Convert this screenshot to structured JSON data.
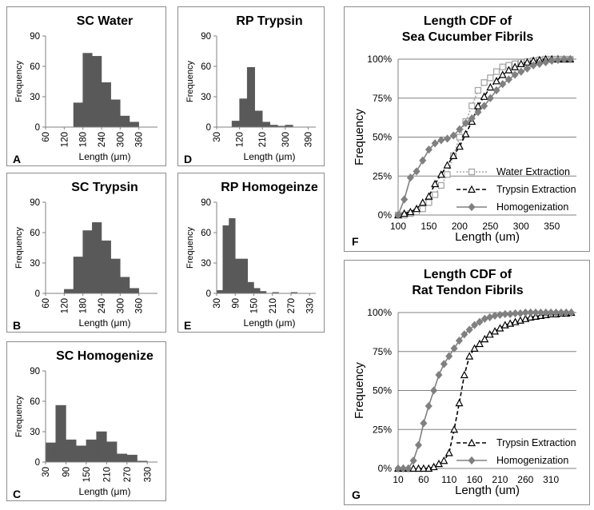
{
  "chart_data": [
    {
      "id": "A",
      "type": "bar",
      "panel_label": "A",
      "title": "SC Water",
      "xlabel": "Length (μm)",
      "ylabel": "Frequency",
      "ylim": [
        0,
        90
      ],
      "yticks": [
        0,
        30,
        60,
        90
      ],
      "xtick_labels": [
        "60",
        "120",
        "180",
        "240",
        "300",
        "360"
      ],
      "bin_width": 30,
      "bins": [
        60,
        90,
        120,
        150,
        180,
        210,
        240,
        270,
        300,
        330,
        360,
        390
      ],
      "values": [
        0,
        0,
        0,
        24,
        73,
        70,
        44,
        27,
        11,
        5,
        0,
        0
      ]
    },
    {
      "id": "B",
      "type": "bar",
      "panel_label": "B",
      "title": "SC Trypsin",
      "xlabel": "Length (μm)",
      "ylabel": "Frequency",
      "ylim": [
        0,
        90
      ],
      "yticks": [
        0,
        30,
        60,
        90
      ],
      "xtick_labels": [
        "60",
        "120",
        "180",
        "240",
        "300",
        "360"
      ],
      "bin_width": 30,
      "bins": [
        60,
        90,
        120,
        150,
        180,
        210,
        240,
        270,
        300,
        330,
        360,
        390
      ],
      "values": [
        0,
        0,
        4,
        36,
        62,
        70,
        52,
        34,
        16,
        5,
        0,
        0
      ]
    },
    {
      "id": "C",
      "type": "bar",
      "panel_label": "C",
      "title": "SC Homogenize",
      "xlabel": "Length (μm)",
      "ylabel": "Frequency",
      "ylim": [
        0,
        90
      ],
      "yticks": [
        0,
        30,
        60,
        90
      ],
      "xtick_labels": [
        "30",
        "90",
        "150",
        "210",
        "270",
        "330"
      ],
      "bin_width": 30,
      "bins": [
        30,
        60,
        90,
        120,
        150,
        180,
        210,
        240,
        270,
        300,
        330
      ],
      "values": [
        19,
        56,
        22,
        16,
        22,
        30,
        20,
        8,
        7,
        1,
        0
      ]
    },
    {
      "id": "D",
      "type": "bar",
      "panel_label": "D",
      "title": "RP Trypsin",
      "xlabel": "Length (μm)",
      "ylabel": "Frequency",
      "ylim": [
        0,
        90
      ],
      "yticks": [
        0,
        30,
        60,
        90
      ],
      "xtick_labels": [
        "30",
        "120",
        "210",
        "300",
        "390"
      ],
      "bin_width": 30,
      "bins": [
        30,
        60,
        90,
        120,
        150,
        180,
        210,
        240,
        270,
        300,
        330,
        360,
        390
      ],
      "values": [
        0,
        0,
        6,
        28,
        59,
        16,
        5,
        2,
        1,
        2,
        0,
        0,
        0
      ]
    },
    {
      "id": "E",
      "type": "bar",
      "panel_label": "E",
      "title": "RP Homogeinze",
      "xlabel": "Length (μm)",
      "ylabel": "Frequency",
      "ylim": [
        0,
        90
      ],
      "yticks": [
        0,
        30,
        60,
        90
      ],
      "xtick_labels": [
        "30",
        "90",
        "150",
        "210",
        "270",
        "330"
      ],
      "bin_width": 20,
      "bins": [
        30,
        50,
        70,
        90,
        110,
        130,
        150,
        170,
        190,
        210,
        230,
        250,
        270,
        290,
        310,
        330
      ],
      "values": [
        3,
        67,
        74,
        34,
        34,
        11,
        5,
        2,
        0,
        1,
        0,
        0,
        1,
        0,
        0,
        0
      ]
    },
    {
      "id": "F",
      "type": "line",
      "panel_label": "F",
      "title": "Length CDF of",
      "subtitle": "Sea Cucumber Fibrils",
      "xlabel": "Length (um)",
      "ylabel": "Frequency",
      "xlim": [
        100,
        390
      ],
      "ylim": [
        0,
        1
      ],
      "xticks": [
        100,
        150,
        200,
        250,
        300,
        350
      ],
      "yticks": [
        0,
        0.25,
        0.5,
        0.75,
        1
      ],
      "ytick_labels": [
        "0%",
        "25%",
        "50%",
        "75%",
        "100%"
      ],
      "legend_position": "bottom-right",
      "series": [
        {
          "name": "Water Extraction",
          "color": "#a6a6a6",
          "dash": "2,2",
          "marker": "square",
          "x": [
            100,
            110,
            120,
            130,
            140,
            150,
            160,
            170,
            180,
            190,
            200,
            210,
            220,
            230,
            240,
            250,
            260,
            270,
            280,
            290,
            300,
            310,
            320,
            330,
            340,
            350,
            360,
            370,
            380
          ],
          "y": [
            0,
            0,
            0.01,
            0.02,
            0.04,
            0.08,
            0.13,
            0.19,
            0.26,
            0.38,
            0.5,
            0.6,
            0.7,
            0.8,
            0.85,
            0.88,
            0.92,
            0.95,
            0.96,
            0.97,
            0.98,
            0.985,
            0.99,
            0.995,
            1,
            1,
            1,
            1,
            1
          ]
        },
        {
          "name": "Trypsin Extraction",
          "color": "#000000",
          "dash": "5,3",
          "marker": "triangle",
          "x": [
            100,
            110,
            120,
            130,
            140,
            150,
            160,
            170,
            180,
            190,
            200,
            210,
            220,
            230,
            240,
            250,
            260,
            270,
            280,
            290,
            300,
            310,
            320,
            330,
            340,
            350,
            360,
            370,
            380
          ],
          "y": [
            0,
            0.01,
            0.02,
            0.04,
            0.08,
            0.12,
            0.2,
            0.26,
            0.32,
            0.38,
            0.44,
            0.52,
            0.6,
            0.7,
            0.76,
            0.82,
            0.86,
            0.9,
            0.93,
            0.95,
            0.97,
            0.98,
            0.99,
            0.995,
            1,
            1,
            1,
            1,
            1
          ]
        },
        {
          "name": "Homogenization",
          "color": "#808080",
          "dash": "",
          "marker": "diamond",
          "x": [
            100,
            110,
            120,
            130,
            140,
            150,
            160,
            170,
            180,
            190,
            200,
            210,
            220,
            230,
            240,
            250,
            260,
            270,
            280,
            290,
            300,
            310,
            320,
            330,
            340,
            350,
            360,
            370,
            380
          ],
          "y": [
            0,
            0.1,
            0.24,
            0.28,
            0.35,
            0.42,
            0.46,
            0.48,
            0.49,
            0.51,
            0.55,
            0.59,
            0.62,
            0.66,
            0.7,
            0.75,
            0.8,
            0.84,
            0.87,
            0.9,
            0.92,
            0.94,
            0.96,
            0.97,
            0.98,
            0.99,
            0.995,
            1,
            1
          ]
        }
      ]
    },
    {
      "id": "G",
      "type": "line",
      "panel_label": "G",
      "title": "Length CDF of",
      "subtitle": "Rat Tendon Fibrils",
      "xlabel": "Length (um)",
      "ylabel": "Frequency",
      "xlim": [
        10,
        360
      ],
      "ylim": [
        0,
        1
      ],
      "xticks": [
        10,
        60,
        110,
        160,
        210,
        260,
        310
      ],
      "yticks": [
        0,
        0.25,
        0.5,
        0.75,
        1
      ],
      "ytick_labels": [
        "0%",
        "25%",
        "50%",
        "75%",
        "100%"
      ],
      "legend_position": "bottom-right",
      "series": [
        {
          "name": "Trypsin Extraction",
          "color": "#000000",
          "dash": "5,3",
          "marker": "triangle",
          "x": [
            10,
            20,
            30,
            40,
            50,
            60,
            70,
            80,
            90,
            100,
            110,
            120,
            130,
            140,
            150,
            160,
            170,
            180,
            190,
            200,
            210,
            220,
            230,
            240,
            250,
            260,
            270,
            280,
            290,
            300,
            310,
            320,
            330,
            340,
            350
          ],
          "y": [
            0,
            0,
            0,
            0,
            0,
            0,
            0,
            0.01,
            0.03,
            0.05,
            0.1,
            0.25,
            0.42,
            0.6,
            0.72,
            0.77,
            0.8,
            0.83,
            0.86,
            0.88,
            0.9,
            0.92,
            0.93,
            0.94,
            0.95,
            0.96,
            0.97,
            0.975,
            0.98,
            0.985,
            0.99,
            0.99,
            0.995,
            0.995,
            1
          ]
        },
        {
          "name": "Homogenization",
          "color": "#808080",
          "dash": "",
          "marker": "diamond",
          "x": [
            10,
            20,
            30,
            40,
            50,
            60,
            70,
            80,
            90,
            100,
            110,
            120,
            130,
            140,
            150,
            160,
            170,
            180,
            190,
            200,
            210,
            220,
            230,
            240,
            250,
            260,
            270,
            280,
            290,
            300,
            310,
            320,
            330,
            340,
            350
          ],
          "y": [
            0,
            0,
            0,
            0.05,
            0.15,
            0.29,
            0.4,
            0.5,
            0.6,
            0.67,
            0.72,
            0.77,
            0.82,
            0.86,
            0.89,
            0.92,
            0.94,
            0.96,
            0.97,
            0.98,
            0.985,
            0.99,
            0.99,
            0.995,
            0.995,
            1,
            1,
            1,
            1,
            1,
            1,
            1,
            1,
            1,
            1
          ]
        }
      ]
    }
  ]
}
